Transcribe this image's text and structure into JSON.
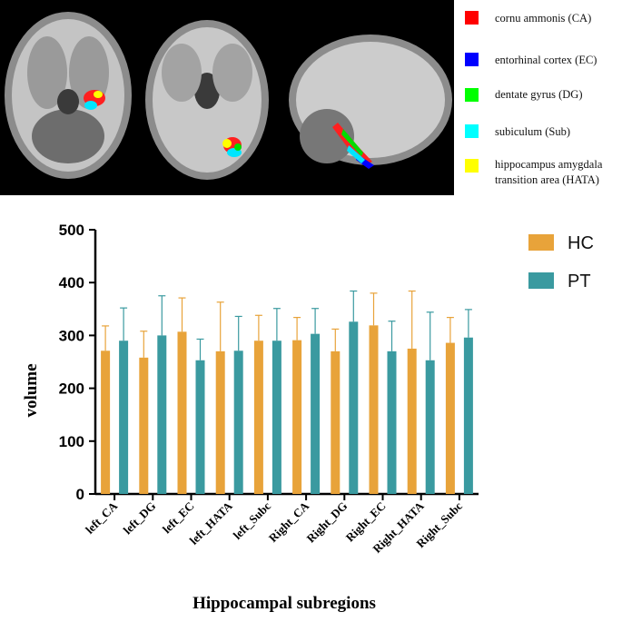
{
  "figure_legend": {
    "items": [
      {
        "label": "cornu ammonis (CA)",
        "color": "#ff0000"
      },
      {
        "label": "entorhinal cortex (EC)",
        "color": "#0000ff"
      },
      {
        "label": "dentate gyrus (DG)",
        "color": "#00ff00"
      },
      {
        "label": "subiculum (Sub)",
        "color": "#00ffff"
      },
      {
        "label": "hippocampus amygdala",
        "label2": "transition area (HATA)",
        "color": "#ffff00"
      }
    ]
  },
  "chart_data": {
    "type": "bar",
    "title": "",
    "xlabel": "Hippocampal subregions",
    "ylabel": "volume",
    "ylim": [
      0,
      500
    ],
    "yticks": [
      0,
      100,
      200,
      300,
      400,
      500
    ],
    "categories": [
      "left_CA",
      "left_DG",
      "left_EC",
      "left_HATA",
      "left_Subc",
      "Right_CA",
      "Right_DG",
      "Right_EC",
      "Right_HATA",
      "Right_Subc"
    ],
    "series": [
      {
        "name": "HC",
        "color": "#e8a33a",
        "values": [
          271,
          258,
          307,
          270,
          290,
          291,
          270,
          319,
          275,
          286
        ],
        "errors": [
          47,
          50,
          64,
          93,
          48,
          43,
          42,
          61,
          109,
          48
        ]
      },
      {
        "name": "PT",
        "color": "#3a9aa0",
        "values": [
          290,
          300,
          253,
          271,
          290,
          303,
          326,
          270,
          253,
          296
        ],
        "errors": [
          62,
          75,
          40,
          65,
          61,
          48,
          58,
          57,
          91,
          53
        ]
      }
    ],
    "legend_position": "top-right"
  }
}
